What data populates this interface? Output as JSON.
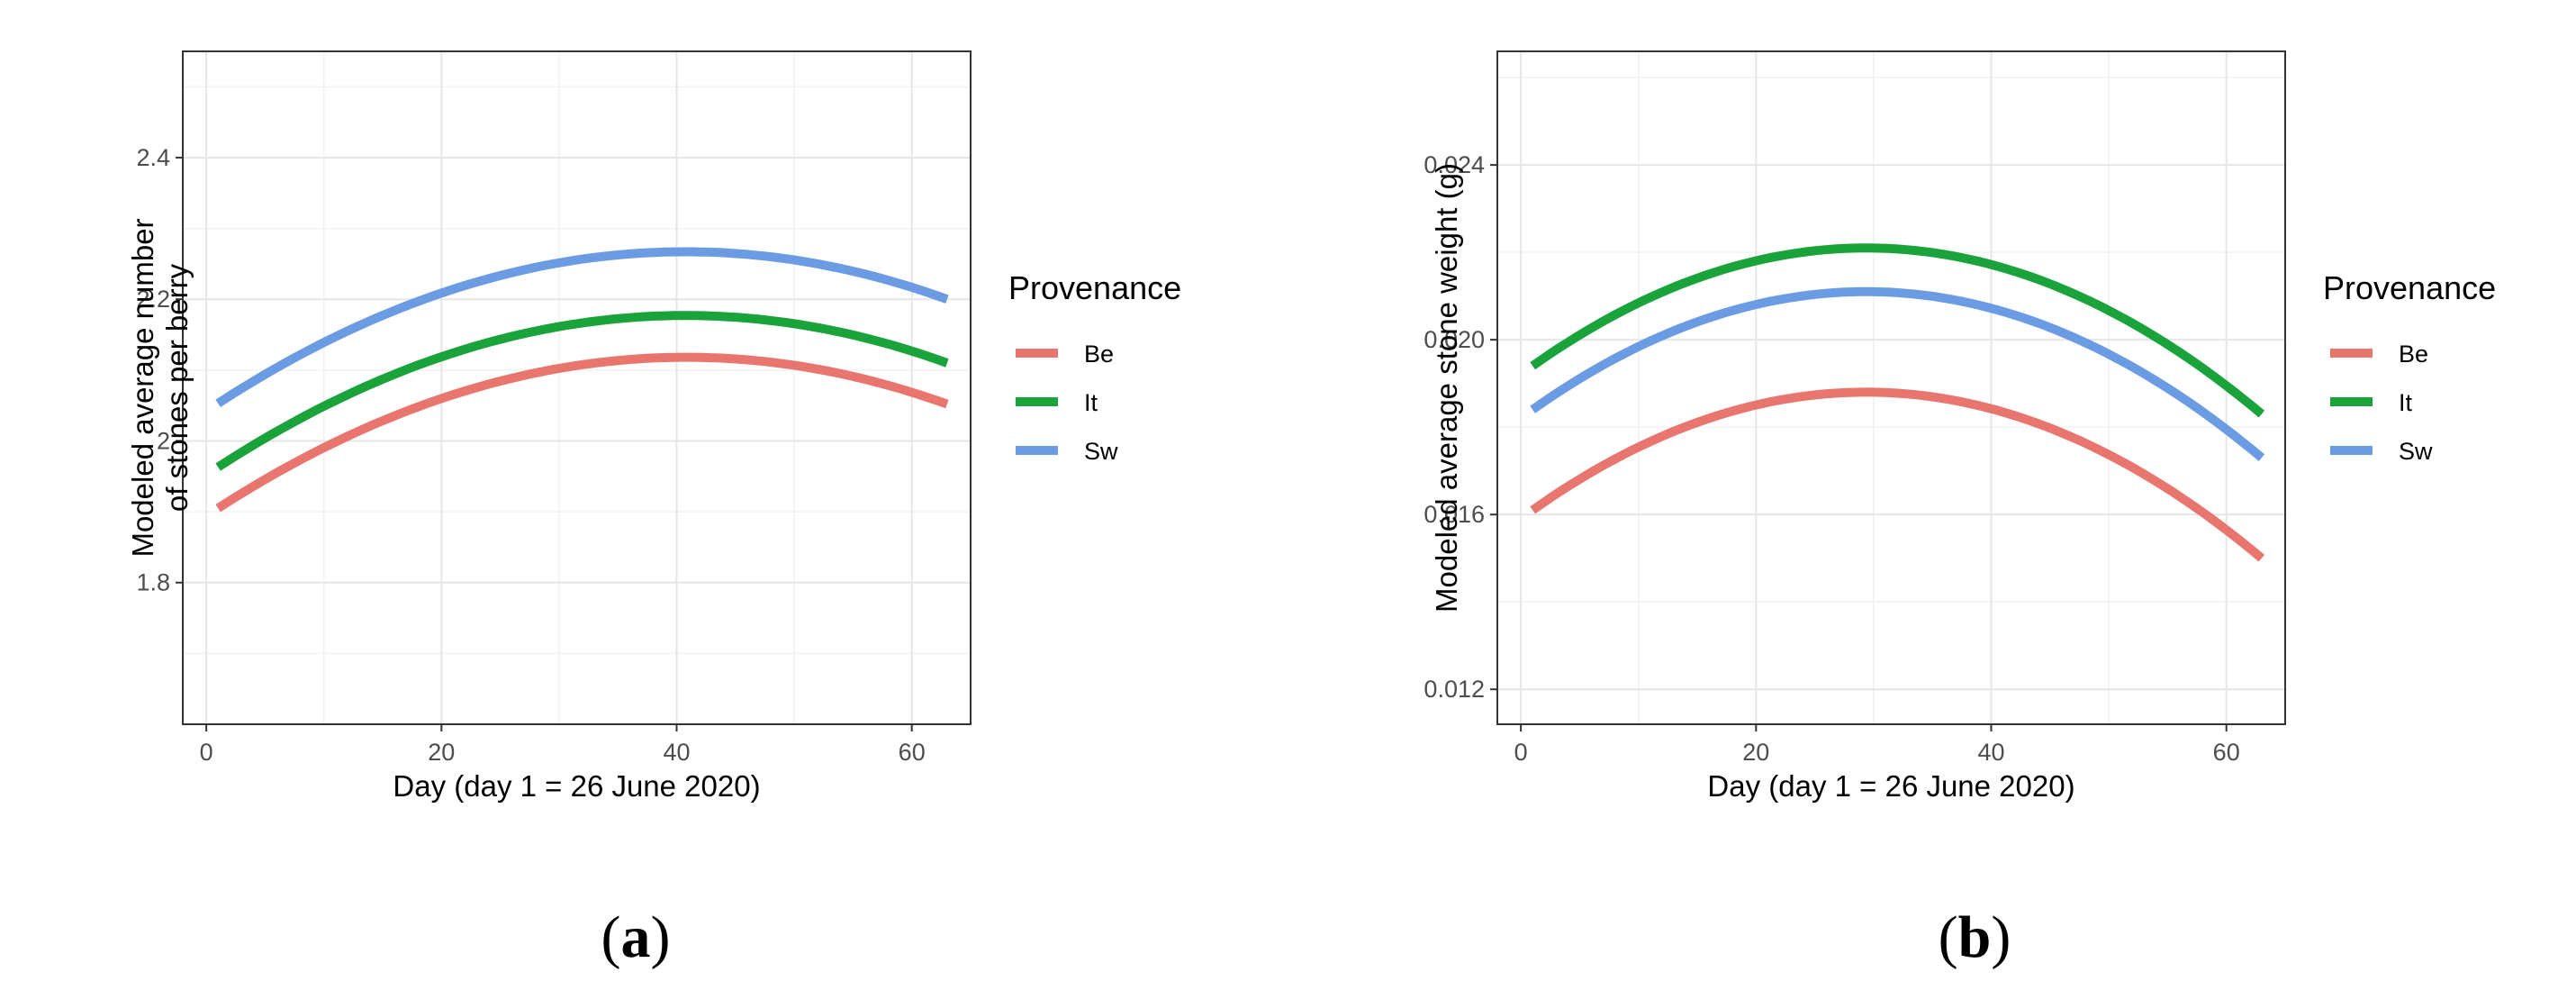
{
  "chart_data": [
    {
      "type": "line",
      "panel": "a",
      "xlabel": "Day (day 1 = 26 June 2020)",
      "ylabel_lines": [
        "Modeled average number",
        "of stones per berry"
      ],
      "xlim": [
        -2,
        65
      ],
      "ylim": [
        1.6,
        2.55
      ],
      "xticks": [
        0,
        20,
        40,
        60
      ],
      "xtick_labels": [
        "0",
        "20",
        "40",
        "60"
      ],
      "yticks": [
        1.8,
        2.0,
        2.2,
        2.4
      ],
      "ytick_labels": [
        "1.8",
        "2",
        "2.2",
        "2.4"
      ],
      "ygrid_minor": [
        1.7,
        1.9,
        2.1,
        2.3,
        2.5
      ],
      "xgrid_minor": [
        10,
        30,
        50
      ],
      "legend": {
        "title": "Provenance",
        "position": "right"
      },
      "series": [
        {
          "name": "Be",
          "color": "#e8766f",
          "x": [
            1,
            40,
            63
          ],
          "y": [
            1.905,
            2.118,
            2.052
          ]
        },
        {
          "name": "It",
          "color": "#1aa33a",
          "x": [
            1,
            40,
            63
          ],
          "y": [
            1.963,
            2.177,
            2.11
          ]
        },
        {
          "name": "Sw",
          "color": "#6b9be3",
          "x": [
            1,
            40,
            63
          ],
          "y": [
            2.053,
            2.267,
            2.2
          ]
        }
      ],
      "caption": {
        "open": "(",
        "letter": "a",
        "close": ")"
      }
    },
    {
      "type": "line",
      "panel": "b",
      "xlabel": "Day (day 1 = 26 June 2020)",
      "ylabel_lines": [
        "Modeled average stone weight (g)"
      ],
      "xlim": [
        -2,
        65
      ],
      "ylim": [
        0.0112,
        0.0266
      ],
      "xticks": [
        0,
        20,
        40,
        60
      ],
      "xtick_labels": [
        "0",
        "20",
        "40",
        "60"
      ],
      "yticks": [
        0.012,
        0.016,
        0.02,
        0.024
      ],
      "ytick_labels": [
        "0.012",
        "0.016",
        "0.020",
        "0.024"
      ],
      "ygrid_minor": [
        0.014,
        0.018,
        0.022,
        0.026
      ],
      "xgrid_minor": [
        10,
        30,
        50
      ],
      "legend": {
        "title": "Provenance",
        "position": "right"
      },
      "series": [
        {
          "name": "Be",
          "color": "#e8766f",
          "x": [
            1,
            29,
            63
          ],
          "y": [
            0.0161,
            0.0188,
            0.015
          ]
        },
        {
          "name": "It",
          "color": "#1aa33a",
          "x": [
            1,
            29,
            63
          ],
          "y": [
            0.0194,
            0.0221,
            0.0183
          ]
        },
        {
          "name": "Sw",
          "color": "#6b9be3",
          "x": [
            1,
            29,
            63
          ],
          "y": [
            0.0184,
            0.0211,
            0.0173
          ]
        }
      ],
      "caption": {
        "open": "(",
        "letter": "b",
        "close": ")"
      }
    }
  ]
}
